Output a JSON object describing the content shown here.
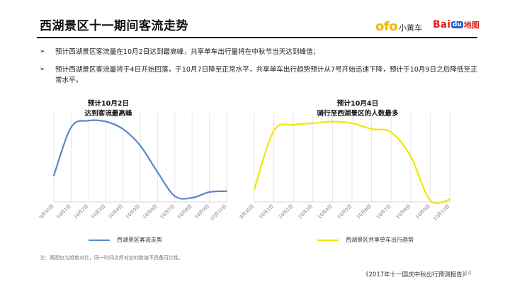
{
  "header": {
    "title": "西湖景区十一期间客流走势",
    "logo_ofo": "ofo",
    "logo_ofo_sub": "小黄车",
    "logo_baidu_a": "Bai",
    "logo_baidu_paw": "du",
    "logo_baidu_map": "地图"
  },
  "bullets": {
    "marker": "➢",
    "items": [
      "预计西湖景区客流量在10月2日达到最高峰，共享单车出行量将在中秋节当天达到峰值；",
      "预计西湖景区客流量将于4日开始回落，于10月7日降至正常水平，共享单车出行趋势预计从7号开始迅速下降，预计于10月9日之后降低至正常水平。"
    ]
  },
  "chart_data": [
    {
      "type": "line",
      "title": "预计10月2日\n达到客流最高峰",
      "title_line1": "预计10月2日",
      "title_line2": "达到客流最高峰",
      "categories": [
        "9月30日",
        "10月1日",
        "10月2日",
        "10月3日",
        "10月4日",
        "10月5日",
        "10月6日",
        "10月7日",
        "10月8日",
        "10月9日",
        "10月10日"
      ],
      "series": [
        {
          "name": "西湖景区客流走势",
          "values": [
            0.32,
            0.9,
            0.98,
            0.97,
            0.88,
            0.68,
            0.36,
            0.07,
            0.05,
            0.12,
            0.13
          ]
        }
      ],
      "ylim": [
        0,
        1
      ],
      "grid": "vertical",
      "legend": "bottom",
      "color": "#5b87c4"
    },
    {
      "type": "line",
      "title": "预计10月4日\n骑行至西湖景区的人数最多",
      "title_line1": "预计10月4日",
      "title_line2": "骑行至西湖景区的人数最多",
      "categories": [
        "9月30日",
        "10月1日",
        "10月2日",
        "10月3日",
        "10月4日",
        "10月5日",
        "10月6日",
        "10月7日",
        "10月8日",
        "10月9日",
        "10月10日"
      ],
      "series": [
        {
          "name": "西湖景区共享单车出行趋势",
          "values": [
            0.15,
            0.86,
            0.93,
            0.95,
            0.97,
            0.95,
            0.88,
            0.84,
            0.55,
            0.02,
            0.03
          ]
        }
      ],
      "ylim": [
        0,
        1
      ],
      "grid": "vertical",
      "legend": "bottom",
      "color": "#f2e600"
    }
  ],
  "note": "注：两图仅为趋势对比，同一时间点所对应的数值不具备可比性。",
  "footer": {
    "report": "《2017年十一国庆中秋出行预测报告》",
    "page": "24"
  }
}
